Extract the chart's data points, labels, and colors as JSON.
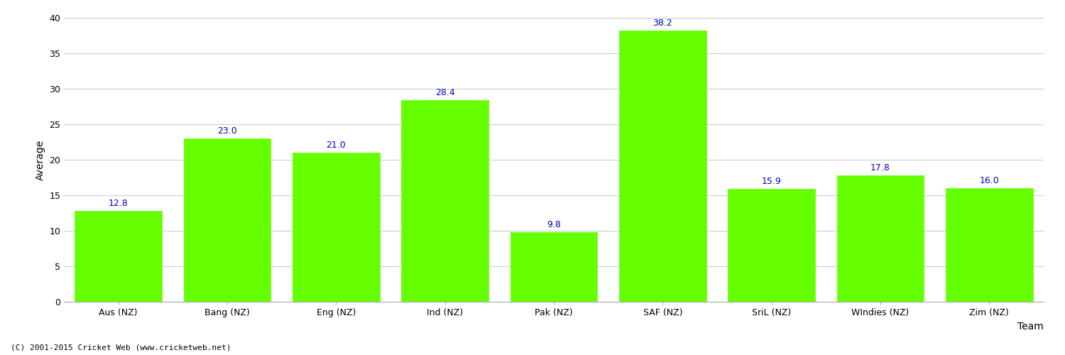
{
  "categories": [
    "Aus (NZ)",
    "Bang (NZ)",
    "Eng (NZ)",
    "Ind (NZ)",
    "Pak (NZ)",
    "SAF (NZ)",
    "SriL (NZ)",
    "WIndies (NZ)",
    "Zim (NZ)"
  ],
  "values": [
    12.8,
    23.0,
    21.0,
    28.4,
    9.8,
    38.2,
    15.9,
    17.8,
    16.0
  ],
  "bar_color": "#66ff00",
  "bar_edge_color": "#66ff00",
  "label_color": "#0000cc",
  "ylabel": "Average",
  "xlabel": "Team",
  "ylim": [
    0,
    40
  ],
  "yticks": [
    0,
    5,
    10,
    15,
    20,
    25,
    30,
    35,
    40
  ],
  "background_color": "#ffffff",
  "grid_color": "#cccccc",
  "label_fontsize": 9,
  "axis_label_fontsize": 10,
  "tick_fontsize": 9,
  "footer_text": "(C) 2001-2015 Cricket Web (www.cricketweb.net)"
}
